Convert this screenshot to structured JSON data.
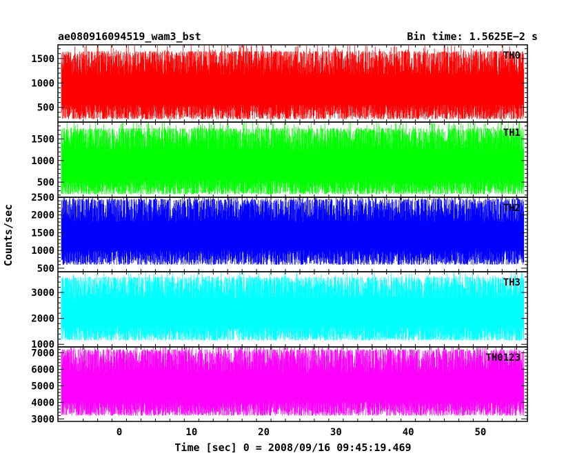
{
  "header": {
    "title": "ae080916094519_wam3_bst",
    "bin_time": "Bin time: 1.5625E−2 s"
  },
  "chart_data": {
    "type": "line",
    "xlabel": "Time [sec] 0 = 2008/09/16 09:45:19.469",
    "ylabel": "Counts/sec",
    "xlim": [
      -8.5,
      56.5
    ],
    "x_range_data": [
      -8,
      56
    ],
    "x_ticks": [
      0,
      10,
      20,
      30,
      40,
      50
    ],
    "x_tick_labels": [
      "0",
      "10",
      "20",
      "30",
      "40",
      "50"
    ],
    "panels": [
      {
        "name": "TH0",
        "color": "#ff0000",
        "ylim": [
          200,
          1780
        ],
        "yticks": [
          500,
          1000,
          1500
        ],
        "ytick_labels": [
          "500",
          "1000",
          "1500"
        ],
        "mean": 850,
        "min_typical": 260,
        "max_typical": 1650
      },
      {
        "name": "TH1",
        "color": "#00ff00",
        "ylim": [
          150,
          1890
        ],
        "yticks": [
          500,
          1000,
          1500
        ],
        "ytick_labels": [
          "500",
          "1000",
          "1500"
        ],
        "mean": 900,
        "min_typical": 220,
        "max_typical": 1750
      },
      {
        "name": "TH2",
        "color": "#0000ff",
        "ylim": [
          400,
          2500
        ],
        "yticks": [
          500,
          1000,
          1500,
          2000,
          2500
        ],
        "ytick_labels": [
          "500",
          "1000",
          "1500",
          "2000",
          "2500"
        ],
        "mean": 1400,
        "min_typical": 600,
        "max_typical": 2450
      },
      {
        "name": "TH3",
        "color": "#00ffff",
        "ylim": [
          900,
          3800
        ],
        "yticks": [
          1000,
          2000,
          3000
        ],
        "ytick_labels": [
          "1000",
          "2000",
          "3000"
        ],
        "mean": 2300,
        "min_typical": 1150,
        "max_typical": 3600
      },
      {
        "name": "TH0123",
        "color": "#ff00ff",
        "ylim": [
          2850,
          7350
        ],
        "yticks": [
          3000,
          4000,
          5000,
          6000,
          7000
        ],
        "ytick_labels": [
          "3000",
          "4000",
          "5000",
          "6000",
          "7000"
        ],
        "mean": 5000,
        "min_typical": 3200,
        "max_typical": 7200
      }
    ]
  }
}
